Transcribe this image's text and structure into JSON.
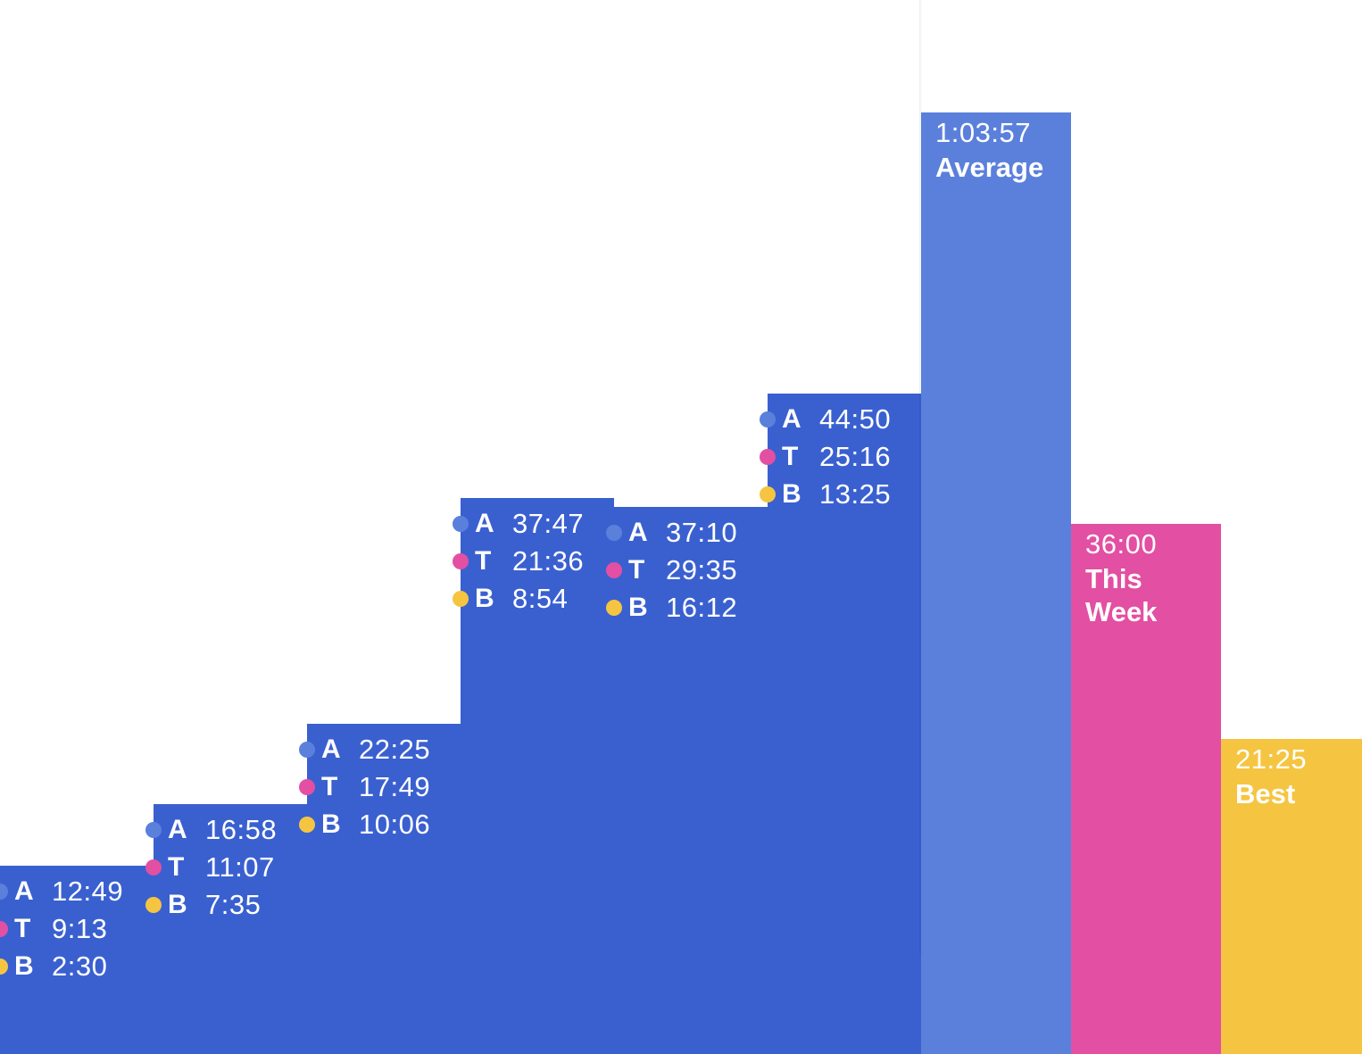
{
  "chart_data": {
    "type": "bar",
    "title": "",
    "xlabel": "",
    "ylabel": "",
    "scale_max_seconds": 3837,
    "series_colors": {
      "A": "#5b80dc",
      "T": "#e34fa2",
      "B": "#f5c542"
    },
    "day_bar_color": "#3a60d0",
    "days": [
      {
        "total_seconds": 769,
        "stats": [
          {
            "key": "A",
            "value": "12:49"
          },
          {
            "key": "T",
            "value": "9:13"
          },
          {
            "key": "B",
            "value": "2:30"
          }
        ]
      },
      {
        "total_seconds": 1018,
        "stats": [
          {
            "key": "A",
            "value": "16:58"
          },
          {
            "key": "T",
            "value": "11:07"
          },
          {
            "key": "B",
            "value": "7:35"
          }
        ]
      },
      {
        "total_seconds": 1345,
        "stats": [
          {
            "key": "A",
            "value": "22:25"
          },
          {
            "key": "T",
            "value": "17:49"
          },
          {
            "key": "B",
            "value": "10:06"
          }
        ]
      },
      {
        "total_seconds": 2267,
        "stats": [
          {
            "key": "A",
            "value": "37:47"
          },
          {
            "key": "T",
            "value": "21:36"
          },
          {
            "key": "B",
            "value": "8:54"
          }
        ]
      },
      {
        "total_seconds": 2230,
        "stats": [
          {
            "key": "A",
            "value": "37:10"
          },
          {
            "key": "T",
            "value": "29:35"
          },
          {
            "key": "B",
            "value": "16:12"
          }
        ]
      },
      {
        "total_seconds": 2690,
        "stats": [
          {
            "key": "A",
            "value": "44:50"
          },
          {
            "key": "T",
            "value": "25:16"
          },
          {
            "key": "B",
            "value": "13:25"
          }
        ]
      }
    ],
    "summary": [
      {
        "id": "average",
        "name": "Average",
        "value": "1:03:57",
        "total_seconds": 3837,
        "color": "#5b80dc"
      },
      {
        "id": "this-week",
        "name": "This Week",
        "value": "36:00",
        "total_seconds": 2160,
        "color": "#e34fa2"
      },
      {
        "id": "best",
        "name": "Best",
        "value": "21:25",
        "total_seconds": 1285,
        "color": "#f5c542"
      }
    ]
  }
}
